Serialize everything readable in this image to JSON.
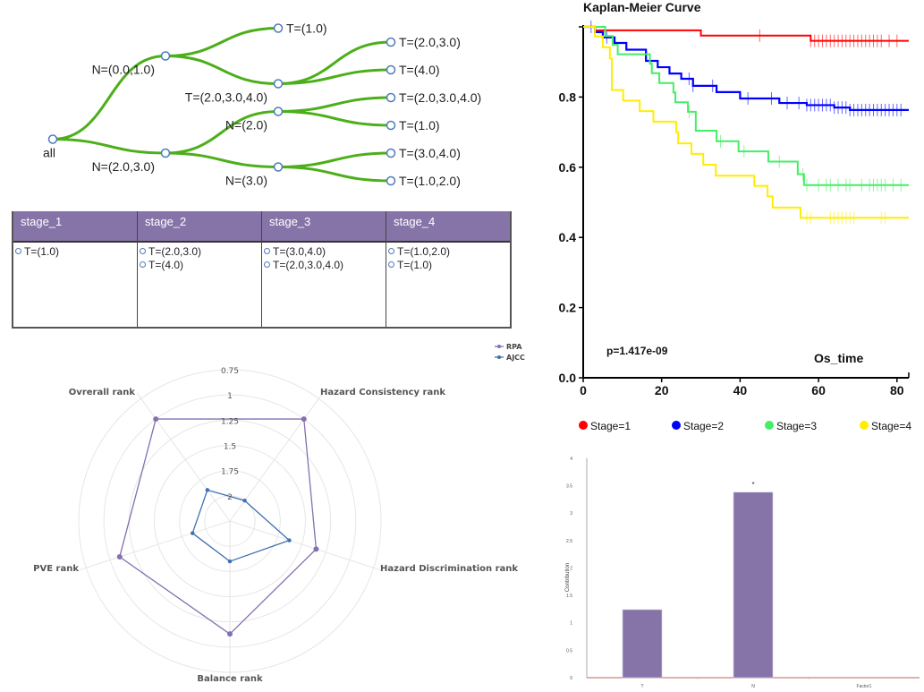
{
  "tree": {
    "link_color": "#4caf1a",
    "node_color": "#4e7bb8",
    "nodes": [
      {
        "id": "all",
        "label": "all",
        "parent": null,
        "depth": 0,
        "slot": 3.5,
        "label_pos": "below"
      },
      {
        "id": "n01",
        "label": "N=(0.0,1.0)",
        "parent": "all",
        "depth": 1,
        "slot": 0.5,
        "label_pos": "below-left"
      },
      {
        "id": "n23",
        "label": "N=(2.0,3.0)",
        "parent": "all",
        "depth": 1,
        "slot": 4,
        "label_pos": "below-left"
      },
      {
        "id": "t1a",
        "label": "T=(1.0)",
        "parent": "n01",
        "depth": 2,
        "slot": -0.5,
        "label_pos": "right"
      },
      {
        "id": "t234a",
        "label": "T=(2.0,3.0,4.0)",
        "parent": "n01",
        "depth": 2,
        "slot": 1.5,
        "label_pos": "below-left"
      },
      {
        "id": "n2",
        "label": "N=(2.0)",
        "parent": "n23",
        "depth": 2,
        "slot": 2.5,
        "label_pos": "below-left"
      },
      {
        "id": "n3",
        "label": "N=(3.0)",
        "parent": "n23",
        "depth": 2,
        "slot": 4.5,
        "label_pos": "below-left"
      },
      {
        "id": "t23",
        "label": "T=(2.0,3.0)",
        "parent": "t234a",
        "depth": 3,
        "slot": 0,
        "label_pos": "right"
      },
      {
        "id": "t4",
        "label": "T=(4.0)",
        "parent": "t234a",
        "depth": 3,
        "slot": 1,
        "label_pos": "right"
      },
      {
        "id": "t234b",
        "label": "T=(2.0,3.0,4.0)",
        "parent": "n2",
        "depth": 3,
        "slot": 2,
        "label_pos": "right"
      },
      {
        "id": "t1b",
        "label": "T=(1.0)",
        "parent": "n2",
        "depth": 3,
        "slot": 3,
        "label_pos": "right"
      },
      {
        "id": "t34",
        "label": "T=(3.0,4.0)",
        "parent": "n3",
        "depth": 3,
        "slot": 4,
        "label_pos": "right"
      },
      {
        "id": "t12",
        "label": "T=(1.0,2.0)",
        "parent": "n3",
        "depth": 3,
        "slot": 5,
        "label_pos": "right"
      }
    ]
  },
  "stage_table": {
    "header_color": "#8674a8",
    "columns": [
      {
        "header": "stage_1",
        "items": [
          "T=(1.0)"
        ]
      },
      {
        "header": "stage_2",
        "items": [
          "T=(2.0,3.0)",
          "T=(4.0)"
        ]
      },
      {
        "header": "stage_3",
        "items": [
          "T=(3.0,4.0)",
          "T=(2.0,3.0,4.0)"
        ]
      },
      {
        "header": "stage_4",
        "items": [
          "T=(1.0,2.0)",
          "T=(1.0)"
        ]
      }
    ]
  },
  "chart_data": [
    {
      "type": "radar",
      "title": "",
      "axes": [
        "Hazard Consistency rank",
        "Hazard Discrimination rank",
        "Balance rank",
        "PVE rank",
        "Ovrerall rank"
      ],
      "radial_range": [
        2.25,
        0.75
      ],
      "radial_ticks": [
        "0.75",
        "1",
        "1.25",
        "1.5",
        "1.75",
        "2"
      ],
      "radial_tick_values": [
        0.75,
        1,
        1.25,
        1.5,
        1.75,
        2
      ],
      "legend_position": "top-right",
      "series": [
        {
          "name": "RPA",
          "color": "#8470b0",
          "values": [
            1.0,
            1.35,
            1.13,
            1.1,
            1.0
          ]
        },
        {
          "name": "AJCC",
          "color": "#3f6fb0",
          "values": [
            2.0,
            1.63,
            1.85,
            1.86,
            1.87
          ]
        }
      ]
    },
    {
      "type": "line",
      "subtype": "step",
      "title": "Kaplan-Meier Curve",
      "xlabel": "Os_time",
      "ylabel": "",
      "xlim": [
        0,
        83
      ],
      "ylim": [
        0,
        1
      ],
      "xticks": [
        0,
        20,
        40,
        60,
        80
      ],
      "yticks": [
        0.0,
        0.2,
        0.4,
        0.6,
        0.8
      ],
      "ytick_labels": [
        "0.0",
        "0.2",
        "0.4",
        "0.6",
        "0.8"
      ],
      "annotation": "p=1.417e-09",
      "legend_position": "bottom",
      "series": [
        {
          "name": "Stage=1",
          "color": "#ff0000",
          "x": [
            0,
            3,
            30,
            58,
            83
          ],
          "y": [
            1.0,
            0.99,
            0.975,
            0.96,
            0.96
          ],
          "censor_x": [
            45,
            58,
            59,
            60,
            61,
            62,
            63,
            64,
            65,
            66,
            67,
            68,
            69,
            70,
            71,
            72,
            73,
            74,
            75,
            76,
            78,
            80
          ]
        },
        {
          "name": "Stage=2",
          "color": "#0000ff",
          "x": [
            0,
            3,
            5,
            8,
            11,
            16,
            19,
            22,
            25,
            28,
            34,
            40,
            50,
            57,
            64,
            68,
            83
          ],
          "y": [
            1.0,
            0.985,
            0.97,
            0.954,
            0.935,
            0.903,
            0.885,
            0.867,
            0.852,
            0.832,
            0.814,
            0.796,
            0.783,
            0.777,
            0.77,
            0.763,
            0.763
          ],
          "censor_x": [
            2,
            6,
            27,
            28,
            33,
            42,
            48,
            52,
            55,
            57,
            58,
            59,
            60,
            61,
            62,
            63,
            64,
            65,
            66,
            67,
            68,
            69,
            70,
            71,
            72,
            73,
            74,
            75,
            76,
            77,
            78,
            79,
            80,
            81
          ]
        },
        {
          "name": "Stage=3",
          "color": "#44ee66",
          "x": [
            0,
            5.6,
            7.5,
            8.8,
            17,
            17.5,
            19.4,
            23,
            23.5,
            26.7,
            28.7,
            34,
            39.6,
            47.2,
            54.7,
            56.3,
            83
          ],
          "y": [
            1.0,
            0.974,
            0.949,
            0.922,
            0.895,
            0.868,
            0.84,
            0.813,
            0.785,
            0.758,
            0.704,
            0.674,
            0.645,
            0.616,
            0.58,
            0.549,
            0.549
          ],
          "censor_x": [
            27,
            35,
            41,
            50,
            56,
            57,
            60,
            62,
            63,
            65,
            67,
            68,
            71,
            73,
            74,
            75,
            76,
            77,
            79,
            81
          ]
        },
        {
          "name": "Stage=4",
          "color": "#ffee00",
          "x": [
            0,
            3,
            5,
            6.8,
            7.3,
            10.2,
            14.4,
            17.9,
            23.7,
            24.2,
            27.6,
            30.6,
            33.8,
            43.6,
            47,
            48.3,
            55.4,
            83
          ],
          "y": [
            1.0,
            0.973,
            0.942,
            0.91,
            0.82,
            0.79,
            0.76,
            0.73,
            0.7,
            0.668,
            0.638,
            0.607,
            0.576,
            0.547,
            0.517,
            0.485,
            0.456,
            0.456
          ],
          "censor_x": [
            57,
            58,
            63,
            64,
            65,
            66,
            67,
            68,
            69,
            76,
            77
          ]
        }
      ]
    },
    {
      "type": "bar",
      "title": "",
      "categories": [
        "T",
        "N",
        "Factor1"
      ],
      "values": [
        1.24,
        3.38,
        0
      ],
      "annotations": [
        {
          "category": "N",
          "text": "*"
        }
      ],
      "xlabel": "",
      "ylabel": "Contribution",
      "ylim": [
        0,
        4
      ],
      "yticks": [
        "0",
        "0.5",
        "1",
        "1.5",
        "2",
        "2.5",
        "3",
        "3.5",
        "4"
      ],
      "ytick_values": [
        0,
        0.5,
        1,
        1.5,
        2,
        2.5,
        3,
        3.5,
        4
      ],
      "bar_color": "#8674a8",
      "baseline_color": "#c98080"
    }
  ]
}
